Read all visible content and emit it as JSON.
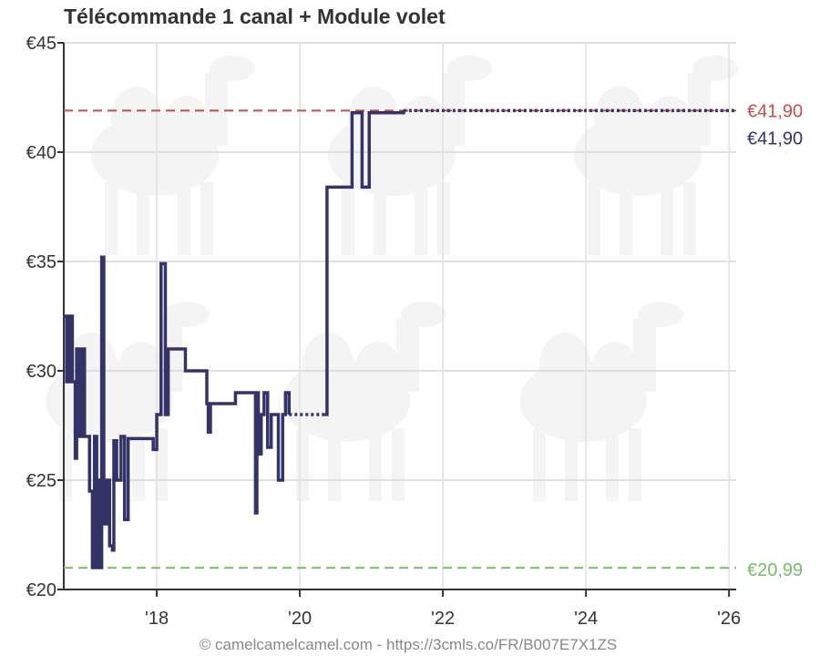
{
  "chart_data": {
    "type": "line",
    "title": "Télécommande 1 canal + Module volet",
    "footer": "© camelcamelcamel.com - https://3cmls.co/FR/B007E7X1ZS",
    "xlabel": "",
    "ylabel": "",
    "xlim": [
      2016.7,
      2026.1
    ],
    "ylim": [
      20,
      45
    ],
    "y_ticks": [
      {
        "value": 45,
        "label": "€45"
      },
      {
        "value": 40,
        "label": "€40"
      },
      {
        "value": 35,
        "label": "€35"
      },
      {
        "value": 30,
        "label": "€30"
      },
      {
        "value": 25,
        "label": "€25"
      },
      {
        "value": 20,
        "label": "€20"
      }
    ],
    "x_ticks": [
      {
        "value": 2018,
        "label": "'18"
      },
      {
        "value": 2020,
        "label": "'20"
      },
      {
        "value": 2022,
        "label": "'22"
      },
      {
        "value": 2024,
        "label": "'24"
      },
      {
        "value": 2026,
        "label": "'26"
      }
    ],
    "grid": true,
    "reference_lines": [
      {
        "kind": "highest",
        "value": 41.9,
        "label": "€41,90",
        "color": "#c44e4e"
      },
      {
        "kind": "lowest",
        "value": 20.99,
        "label": "€20,99",
        "color": "#77bb66"
      }
    ],
    "current": {
      "value": 41.9,
      "label": "€41,90",
      "color": "#33336a"
    },
    "series": [
      {
        "color": "#33336a",
        "points": [
          [
            2016.7,
            32.5
          ],
          [
            2016.74,
            29.5
          ],
          [
            2016.78,
            32.5
          ],
          [
            2016.82,
            29.5
          ],
          [
            2016.86,
            26.0
          ],
          [
            2016.88,
            31.0
          ],
          [
            2016.92,
            27.0
          ],
          [
            2016.95,
            31.0
          ],
          [
            2016.99,
            27.0
          ],
          [
            2017.03,
            27.0
          ],
          [
            2017.06,
            24.5
          ],
          [
            2017.1,
            21.0
          ],
          [
            2017.13,
            27.0
          ],
          [
            2017.16,
            21.0
          ],
          [
            2017.19,
            25.0
          ],
          [
            2017.21,
            21.0
          ],
          [
            2017.23,
            35.2
          ],
          [
            2017.26,
            23.0
          ],
          [
            2017.3,
            25.0
          ],
          [
            2017.34,
            22.0
          ],
          [
            2017.38,
            21.8
          ],
          [
            2017.4,
            26.8
          ],
          [
            2017.44,
            25.0
          ],
          [
            2017.5,
            27.0
          ],
          [
            2017.55,
            23.2
          ],
          [
            2017.6,
            26.9
          ],
          [
            2017.95,
            26.4
          ],
          [
            2018.0,
            28.0
          ],
          [
            2018.04,
            28.0
          ],
          [
            2018.06,
            34.9
          ],
          [
            2018.1,
            34.9
          ],
          [
            2018.12,
            28.0
          ],
          [
            2018.16,
            31.0
          ],
          [
            2018.4,
            30.0
          ],
          [
            2018.7,
            28.5
          ],
          [
            2018.72,
            27.2
          ],
          [
            2018.75,
            28.5
          ],
          [
            2019.1,
            29.0
          ],
          [
            2019.38,
            23.5
          ],
          [
            2019.4,
            29.0
          ],
          [
            2019.42,
            26.2
          ],
          [
            2019.46,
            28.0
          ],
          [
            2019.5,
            29.0
          ],
          [
            2019.55,
            26.5
          ],
          [
            2019.6,
            28.0
          ],
          [
            2019.7,
            25.0
          ],
          [
            2019.73,
            25.0
          ],
          [
            2019.76,
            28.0
          ],
          [
            2019.8,
            29.0
          ],
          [
            2019.85,
            28.0
          ]
        ]
      },
      {
        "color": "#33336a",
        "points": [
          [
            2020.35,
            28.0
          ],
          [
            2020.38,
            38.4
          ],
          [
            2020.7,
            38.4
          ],
          [
            2020.73,
            41.8
          ],
          [
            2020.85,
            41.8
          ],
          [
            2020.87,
            38.4
          ],
          [
            2020.95,
            38.4
          ],
          [
            2020.97,
            41.8
          ],
          [
            2021.45,
            41.9
          ]
        ]
      }
    ],
    "dotted_segments": [
      {
        "from": [
          2019.85,
          28.0
        ],
        "to": [
          2020.35,
          28.0
        ]
      },
      {
        "from": [
          2021.45,
          41.9
        ],
        "to": [
          2026.1,
          41.9
        ]
      }
    ]
  }
}
